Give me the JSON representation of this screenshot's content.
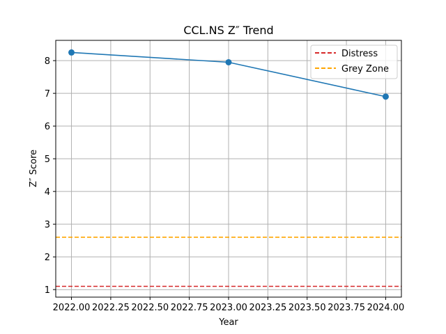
{
  "chart_data": {
    "type": "line",
    "title": "CCL.NS Z″ Trend",
    "xlabel": "Year",
    "ylabel": "Z″ Score",
    "xlim": [
      2021.9,
      2024.1
    ],
    "ylim": [
      0.77,
      8.62
    ],
    "grid": true,
    "legend_position": "top-right",
    "x_ticks": [
      2022.0,
      2022.25,
      2022.5,
      2022.75,
      2023.0,
      2023.25,
      2023.5,
      2023.75,
      2024.0
    ],
    "x_tick_labels": [
      "2022.00",
      "2022.25",
      "2022.50",
      "2022.75",
      "2023.00",
      "2023.25",
      "2023.50",
      "2023.75",
      "2024.00"
    ],
    "y_ticks": [
      1,
      2,
      3,
      4,
      5,
      6,
      7,
      8
    ],
    "y_tick_labels": [
      "1",
      "2",
      "3",
      "4",
      "5",
      "6",
      "7",
      "8"
    ],
    "series": [
      {
        "x": [
          2022,
          2023,
          2024
        ],
        "values": [
          8.25,
          7.95,
          6.9
        ],
        "color": "#1f77b4"
      }
    ],
    "reference_lines": [
      {
        "name": "Distress",
        "y": 1.1,
        "color": "#d62728",
        "style": "dashed"
      },
      {
        "name": "Grey Zone",
        "y": 2.6,
        "color": "#ffa500",
        "style": "dashed"
      }
    ]
  }
}
